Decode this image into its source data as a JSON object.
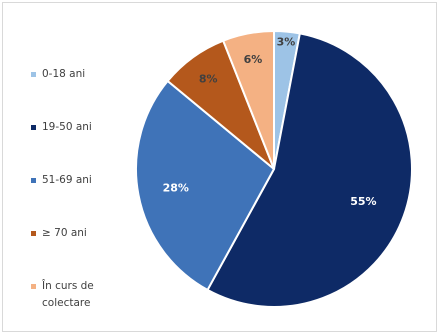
{
  "chart_data": {
    "type": "pie",
    "title": "",
    "categories": [
      "0-18 ani",
      "19-50 ani",
      "51-69 ani",
      "≥ 70 ani",
      "În curs de colectare"
    ],
    "values": [
      3,
      55,
      28,
      8,
      6
    ],
    "labels": [
      "3%",
      "55%",
      "28%",
      "8%",
      "6%"
    ],
    "colors": [
      "#9dc3e6",
      "#0e2a66",
      "#3f73b8",
      "#b4581c",
      "#f4b183"
    ],
    "label_colors": [
      "#404040",
      "#ffffff",
      "#ffffff",
      "#404040",
      "#404040"
    ],
    "legend_position": "left",
    "start_angle_deg": 0,
    "direction": "clockwise"
  },
  "legend": {
    "items": [
      {
        "label": "0-18 ani",
        "color": "#9dc3e6"
      },
      {
        "label": "19-50 ani",
        "color": "#0e2a66"
      },
      {
        "label": "51-69 ani",
        "color": "#3f73b8"
      },
      {
        "label": "≥ 70 ani",
        "color": "#b4581c"
      },
      {
        "label": "În curs de colectare",
        "color": "#f4b183"
      }
    ]
  }
}
